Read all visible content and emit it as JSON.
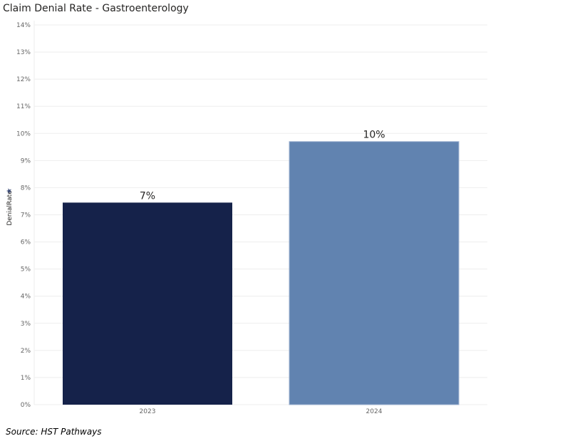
{
  "chart_data": {
    "type": "bar",
    "title": "Claim Denial Rate - Gastroenterology",
    "xlabel": "",
    "ylabel": "DenialRate",
    "ylim": [
      0,
      14
    ],
    "y_ticks": [
      "0%",
      "1%",
      "2%",
      "3%",
      "4%",
      "5%",
      "6%",
      "7%",
      "8%",
      "9%",
      "10%",
      "11%",
      "12%",
      "13%",
      "14%"
    ],
    "categories": [
      "2023",
      "2024"
    ],
    "values": [
      7.45,
      9.7
    ],
    "data_labels": [
      "7%",
      "10%"
    ],
    "colors": [
      "#15224a",
      "#6183b0"
    ],
    "grid": true
  },
  "ylabel_sort_icon": "sort-icon",
  "source": "Source: HST Pathways"
}
